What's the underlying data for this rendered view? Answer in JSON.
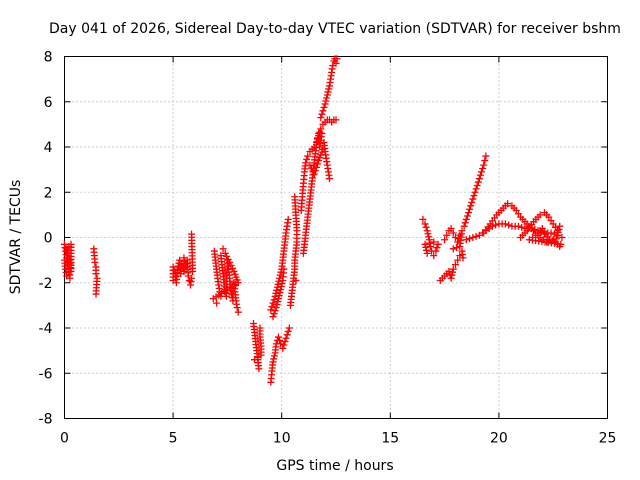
{
  "chart_data": {
    "type": "scatter",
    "title": "Day 041 of 2026, Sidereal Day-to-day VTEC variation (SDTVAR) for receiver bshm",
    "xlabel": "GPS time / hours",
    "ylabel": "SDTVAR / TECUs",
    "xlim": [
      0,
      25
    ],
    "ylim": [
      -8,
      8
    ],
    "xticks": [
      "0",
      "5",
      "10",
      "15",
      "20",
      "25"
    ],
    "yticks": [
      "-8",
      "-6",
      "-4",
      "-2",
      "0",
      "2",
      "4",
      "6",
      "8"
    ],
    "grid": true,
    "marker": "plus",
    "series_color": "#ff0000",
    "legend": "none",
    "segments": [
      {
        "name": "arc-a1",
        "points": [
          [
            0.0,
            -0.3
          ],
          [
            0.05,
            -0.6
          ],
          [
            0.1,
            -0.9
          ],
          [
            0.15,
            -1.2
          ],
          [
            0.2,
            -1.5
          ],
          [
            0.25,
            -1.8
          ],
          [
            0.1,
            -0.5
          ],
          [
            0.2,
            -0.4
          ],
          [
            0.3,
            -0.3
          ],
          [
            0.3,
            -0.7
          ],
          [
            0.3,
            -1.1
          ],
          [
            0.3,
            -1.5
          ],
          [
            0.25,
            -1.0
          ],
          [
            0.0,
            -1.0
          ],
          [
            0.05,
            -1.4
          ],
          [
            0.1,
            -1.7
          ]
        ]
      },
      {
        "name": "arc-a2",
        "points": [
          [
            1.35,
            -0.5
          ],
          [
            1.4,
            -1.1
          ],
          [
            1.45,
            -1.3
          ],
          [
            1.45,
            -1.6
          ],
          [
            1.5,
            -1.8
          ],
          [
            1.45,
            -2.5
          ]
        ]
      },
      {
        "name": "arc-b1",
        "points": [
          [
            5.0,
            -1.9
          ],
          [
            5.0,
            -1.3
          ],
          [
            5.1,
            -1.6
          ],
          [
            5.15,
            -2.0
          ],
          [
            5.2,
            -1.4
          ],
          [
            5.3,
            -1.0
          ],
          [
            5.35,
            -1.6
          ],
          [
            5.4,
            -1.2
          ],
          [
            5.5,
            -1.5
          ],
          [
            5.5,
            -0.9
          ],
          [
            5.6,
            -1.3
          ],
          [
            5.65,
            -1.0
          ],
          [
            5.7,
            -1.7
          ],
          [
            5.75,
            -1.9
          ],
          [
            5.8,
            -2.1
          ],
          [
            5.85,
            -1.8
          ],
          [
            5.85,
            0.15
          ],
          [
            5.9,
            -1.5
          ]
        ]
      },
      {
        "name": "arc-c1",
        "points": [
          [
            6.9,
            -0.6
          ],
          [
            6.95,
            -1.0
          ],
          [
            7.0,
            -1.4
          ],
          [
            7.05,
            -1.8
          ],
          [
            7.1,
            -2.1
          ],
          [
            7.15,
            -2.4
          ],
          [
            7.2,
            -2.6
          ],
          [
            7.2,
            -0.8
          ],
          [
            7.25,
            -1.2
          ],
          [
            7.3,
            -1.6
          ],
          [
            7.35,
            -2.0
          ],
          [
            7.4,
            -2.3
          ],
          [
            7.45,
            -2.6
          ],
          [
            7.5,
            -1.0
          ],
          [
            7.55,
            -1.4
          ],
          [
            7.6,
            -1.8
          ],
          [
            7.65,
            -2.2
          ],
          [
            7.7,
            -2.5
          ],
          [
            7.75,
            -2.8
          ],
          [
            7.8,
            -2.0
          ],
          [
            7.85,
            -2.4
          ],
          [
            7.9,
            -2.8
          ],
          [
            7.95,
            -3.1
          ],
          [
            8.0,
            -3.3
          ],
          [
            7.3,
            -0.5
          ],
          [
            7.4,
            -0.7
          ],
          [
            7.6,
            -1.1
          ],
          [
            7.8,
            -1.5
          ],
          [
            8.0,
            -2.0
          ],
          [
            6.85,
            -2.7
          ],
          [
            7.0,
            -2.9
          ]
        ]
      },
      {
        "name": "arc-c2",
        "points": [
          [
            8.7,
            -3.8
          ],
          [
            8.75,
            -4.2
          ],
          [
            8.8,
            -4.6
          ],
          [
            8.85,
            -5.0
          ],
          [
            8.9,
            -5.4
          ],
          [
            8.95,
            -5.8
          ],
          [
            9.0,
            -4.0
          ],
          [
            9.0,
            -4.4
          ],
          [
            9.05,
            -4.8
          ],
          [
            9.05,
            -5.2
          ],
          [
            8.75,
            -5.4
          ]
        ]
      },
      {
        "name": "arc-d1",
        "points": [
          [
            9.5,
            -6.4
          ],
          [
            9.55,
            -5.9
          ],
          [
            9.6,
            -5.5
          ],
          [
            9.7,
            -5.1
          ],
          [
            9.75,
            -4.7
          ],
          [
            9.85,
            -4.4
          ],
          [
            9.95,
            -4.7
          ],
          [
            10.05,
            -4.9
          ],
          [
            10.15,
            -4.6
          ],
          [
            10.25,
            -4.3
          ],
          [
            10.35,
            -4.0
          ]
        ]
      },
      {
        "name": "arc-d2",
        "points": [
          [
            9.5,
            -3.2
          ],
          [
            9.6,
            -2.9
          ],
          [
            9.7,
            -2.6
          ],
          [
            9.8,
            -2.2
          ],
          [
            9.9,
            -1.8
          ],
          [
            10.0,
            -1.4
          ],
          [
            10.05,
            -1.0
          ],
          [
            10.1,
            -0.6
          ],
          [
            10.15,
            -0.2
          ],
          [
            10.2,
            0.2
          ],
          [
            10.25,
            0.5
          ],
          [
            10.3,
            0.8
          ],
          [
            9.6,
            -3.5
          ],
          [
            9.75,
            -3.1
          ],
          [
            9.85,
            -2.7
          ],
          [
            9.95,
            -2.3
          ],
          [
            10.05,
            -1.9
          ],
          [
            10.1,
            -1.4
          ]
        ]
      },
      {
        "name": "arc-d3",
        "points": [
          [
            10.4,
            -3.0
          ],
          [
            10.45,
            -2.6
          ],
          [
            10.5,
            -2.2
          ],
          [
            10.55,
            -1.8
          ],
          [
            10.6,
            -1.4
          ],
          [
            10.6,
            -1.0
          ],
          [
            10.65,
            -0.6
          ],
          [
            10.7,
            -0.2
          ],
          [
            10.7,
            0.3
          ],
          [
            10.6,
            1.8
          ],
          [
            10.65,
            -1.9
          ]
        ]
      },
      {
        "name": "arc-d4",
        "points": [
          [
            11.0,
            -0.7
          ],
          [
            11.05,
            -0.3
          ],
          [
            11.1,
            0.1
          ],
          [
            11.15,
            0.5
          ],
          [
            11.2,
            0.9
          ],
          [
            11.25,
            1.3
          ],
          [
            11.3,
            1.7
          ],
          [
            11.35,
            2.1
          ],
          [
            11.4,
            2.5
          ],
          [
            11.45,
            2.9
          ],
          [
            11.5,
            3.3
          ],
          [
            11.55,
            3.7
          ],
          [
            11.6,
            4.1
          ],
          [
            11.65,
            4.4
          ],
          [
            11.7,
            4.6
          ]
        ]
      },
      {
        "name": "arc-d5",
        "points": [
          [
            10.9,
            1.2
          ],
          [
            10.95,
            1.8
          ],
          [
            11.0,
            2.4
          ],
          [
            11.05,
            2.9
          ],
          [
            11.1,
            3.3
          ],
          [
            11.2,
            3.6
          ],
          [
            11.3,
            3.8
          ],
          [
            11.4,
            3.9
          ],
          [
            11.5,
            4.0
          ],
          [
            11.6,
            4.2
          ],
          [
            11.7,
            4.5
          ],
          [
            11.8,
            4.8
          ],
          [
            11.9,
            5.0
          ],
          [
            12.0,
            5.1
          ],
          [
            12.1,
            5.2
          ],
          [
            12.2,
            5.2
          ],
          [
            12.3,
            5.1
          ],
          [
            12.4,
            5.2
          ],
          [
            12.5,
            5.2
          ],
          [
            11.3,
            3.2
          ],
          [
            11.5,
            2.8
          ],
          [
            11.7,
            3.4
          ],
          [
            11.9,
            3.9
          ]
        ]
      },
      {
        "name": "arc-d6",
        "points": [
          [
            11.8,
            5.3
          ],
          [
            11.9,
            5.6
          ],
          [
            12.0,
            5.9
          ],
          [
            12.1,
            6.3
          ],
          [
            12.2,
            6.7
          ],
          [
            12.25,
            7.0
          ],
          [
            12.3,
            7.3
          ],
          [
            12.35,
            7.6
          ],
          [
            12.4,
            7.8
          ],
          [
            12.45,
            7.9
          ],
          [
            12.5,
            7.7
          ],
          [
            12.55,
            7.9
          ]
        ]
      },
      {
        "name": "arc-d7",
        "points": [
          [
            11.95,
            4.2
          ],
          [
            12.0,
            3.8
          ],
          [
            12.05,
            3.5
          ],
          [
            12.1,
            3.2
          ],
          [
            12.15,
            2.9
          ],
          [
            12.2,
            2.6
          ],
          [
            11.85,
            4.6
          ],
          [
            11.75,
            4.0
          ]
        ]
      },
      {
        "name": "arc-e1",
        "points": [
          [
            16.5,
            0.8
          ],
          [
            16.6,
            0.6
          ],
          [
            16.7,
            0.3
          ],
          [
            16.8,
            -0.1
          ],
          [
            16.85,
            -0.4
          ],
          [
            16.9,
            -0.6
          ],
          [
            17.0,
            -0.8
          ],
          [
            17.1,
            -0.6
          ],
          [
            17.2,
            -0.3
          ],
          [
            17.0,
            -0.2
          ],
          [
            16.6,
            -0.3
          ],
          [
            16.7,
            -0.7
          ]
        ]
      },
      {
        "name": "arc-e2",
        "points": [
          [
            17.3,
            -1.9
          ],
          [
            17.5,
            -1.7
          ],
          [
            17.7,
            -1.5
          ],
          [
            17.8,
            -1.8
          ],
          [
            17.9,
            -1.4
          ],
          [
            18.0,
            -1.2
          ],
          [
            18.1,
            -1.0
          ],
          [
            18.2,
            -0.8
          ],
          [
            18.3,
            -0.6
          ],
          [
            18.35,
            -0.9
          ]
        ]
      },
      {
        "name": "arc-e3",
        "points": [
          [
            17.5,
            -0.1
          ],
          [
            17.6,
            0.1
          ],
          [
            17.7,
            0.3
          ],
          [
            17.8,
            0.4
          ],
          [
            17.9,
            0.2
          ],
          [
            18.0,
            0.0
          ],
          [
            18.1,
            -0.2
          ],
          [
            18.2,
            0.1
          ],
          [
            18.3,
            0.3
          ],
          [
            18.2,
            -0.4
          ],
          [
            17.9,
            -0.5
          ]
        ]
      },
      {
        "name": "arc-e4",
        "points": [
          [
            18.4,
            0.5
          ],
          [
            18.5,
            0.8
          ],
          [
            18.6,
            1.1
          ],
          [
            18.7,
            1.4
          ],
          [
            18.8,
            1.7
          ],
          [
            18.9,
            2.0
          ],
          [
            19.0,
            2.3
          ],
          [
            19.1,
            2.6
          ],
          [
            19.2,
            2.9
          ],
          [
            19.3,
            3.2
          ],
          [
            19.35,
            3.4
          ],
          [
            19.4,
            3.6
          ]
        ]
      },
      {
        "name": "arc-e5",
        "points": [
          [
            18.5,
            -0.1
          ],
          [
            18.8,
            0.0
          ],
          [
            19.1,
            0.1
          ],
          [
            19.4,
            0.3
          ],
          [
            19.7,
            0.5
          ],
          [
            20.0,
            0.6
          ],
          [
            20.3,
            0.6
          ],
          [
            20.6,
            0.5
          ],
          [
            20.9,
            0.5
          ],
          [
            21.2,
            0.4
          ],
          [
            21.5,
            0.4
          ],
          [
            21.8,
            0.3
          ],
          [
            22.1,
            0.2
          ],
          [
            22.4,
            0.2
          ],
          [
            22.7,
            0.1
          ],
          [
            22.9,
            0.0
          ]
        ]
      },
      {
        "name": "arc-e6",
        "points": [
          [
            19.3,
            0.2
          ],
          [
            19.6,
            0.6
          ],
          [
            19.9,
            1.0
          ],
          [
            20.2,
            1.3
          ],
          [
            20.4,
            1.5
          ],
          [
            20.6,
            1.4
          ],
          [
            20.8,
            1.2
          ],
          [
            21.0,
            0.9
          ],
          [
            21.3,
            0.6
          ],
          [
            21.6,
            0.3
          ],
          [
            21.9,
            0.0
          ],
          [
            22.2,
            -0.2
          ],
          [
            22.5,
            -0.1
          ],
          [
            22.8,
            -0.4
          ]
        ]
      },
      {
        "name": "arc-e7",
        "points": [
          [
            21.0,
            0.0
          ],
          [
            21.3,
            0.3
          ],
          [
            21.6,
            0.7
          ],
          [
            21.9,
            1.0
          ],
          [
            22.1,
            1.1
          ],
          [
            22.3,
            0.9
          ],
          [
            22.5,
            0.6
          ],
          [
            22.7,
            0.3
          ],
          [
            22.8,
            0.5
          ],
          [
            22.6,
            -0.2
          ],
          [
            22.3,
            -0.1
          ],
          [
            22.0,
            0.4
          ],
          [
            21.7,
            0.1
          ],
          [
            21.4,
            -0.1
          ],
          [
            22.85,
            -0.3
          ]
        ]
      }
    ]
  }
}
